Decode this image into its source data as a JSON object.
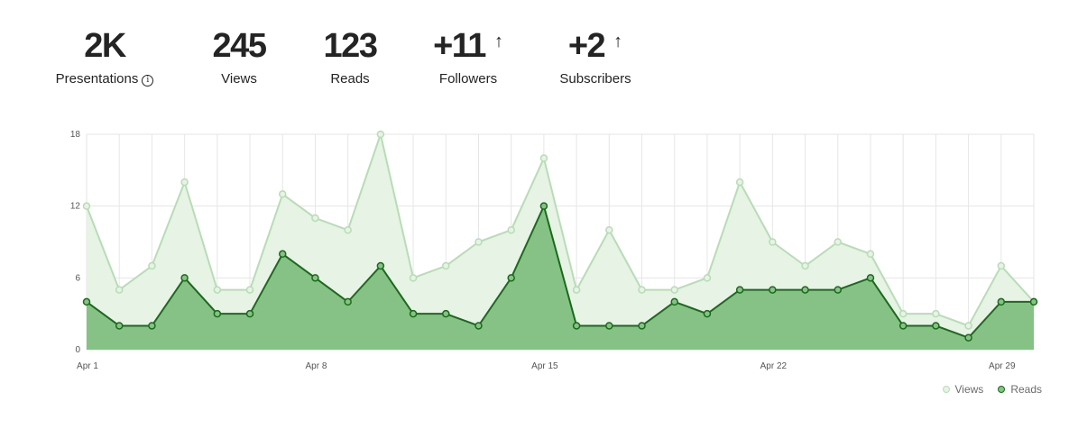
{
  "stats": [
    {
      "value": "2K",
      "label": "Presentations",
      "info": true,
      "arrow": false
    },
    {
      "value": "245",
      "label": "Views",
      "info": false,
      "arrow": false
    },
    {
      "value": "123",
      "label": "Reads",
      "info": false,
      "arrow": false
    },
    {
      "value": "+11",
      "label": "Followers",
      "info": false,
      "arrow": true
    },
    {
      "value": "+2",
      "label": "Subscribers",
      "info": false,
      "arrow": true
    }
  ],
  "icons": {
    "info": "i",
    "arrow_up": "↑"
  },
  "colors": {
    "views_line": "#b7ddb5",
    "views_fill": "#e6f3e5",
    "reads_line": "#1a6b1a",
    "reads_fill": "#86c286",
    "grid": "#e6e6e6"
  },
  "chart_data": {
    "type": "area",
    "title": "",
    "xlabel": "",
    "ylabel": "",
    "ylim": [
      0,
      18
    ],
    "yticks": [
      0,
      6,
      12,
      18
    ],
    "x": [
      "Apr 1",
      "Apr 2",
      "Apr 3",
      "Apr 4",
      "Apr 5",
      "Apr 6",
      "Apr 7",
      "Apr 8",
      "Apr 9",
      "Apr 10",
      "Apr 11",
      "Apr 12",
      "Apr 13",
      "Apr 14",
      "Apr 15",
      "Apr 16",
      "Apr 17",
      "Apr 18",
      "Apr 19",
      "Apr 20",
      "Apr 21",
      "Apr 22",
      "Apr 23",
      "Apr 24",
      "Apr 25",
      "Apr 26",
      "Apr 27",
      "Apr 28",
      "Apr 29",
      "Apr 30"
    ],
    "xtick_labels": [
      "Apr 1",
      "Apr 8",
      "Apr 15",
      "Apr 22",
      "Apr 29"
    ],
    "grid": true,
    "legend": "bottom-right",
    "series": [
      {
        "name": "Views",
        "values": [
          12,
          5,
          7,
          14,
          5,
          5,
          13,
          11,
          10,
          18,
          6,
          7,
          9,
          10,
          16,
          5,
          10,
          5,
          5,
          6,
          14,
          9,
          7,
          9,
          8,
          3,
          3,
          2,
          7,
          4
        ]
      },
      {
        "name": "Reads",
        "values": [
          4,
          2,
          2,
          6,
          3,
          3,
          8,
          6,
          4,
          7,
          3,
          3,
          2,
          6,
          12,
          2,
          2,
          2,
          4,
          3,
          5,
          5,
          5,
          5,
          6,
          2,
          2,
          1,
          4,
          4
        ]
      }
    ]
  }
}
